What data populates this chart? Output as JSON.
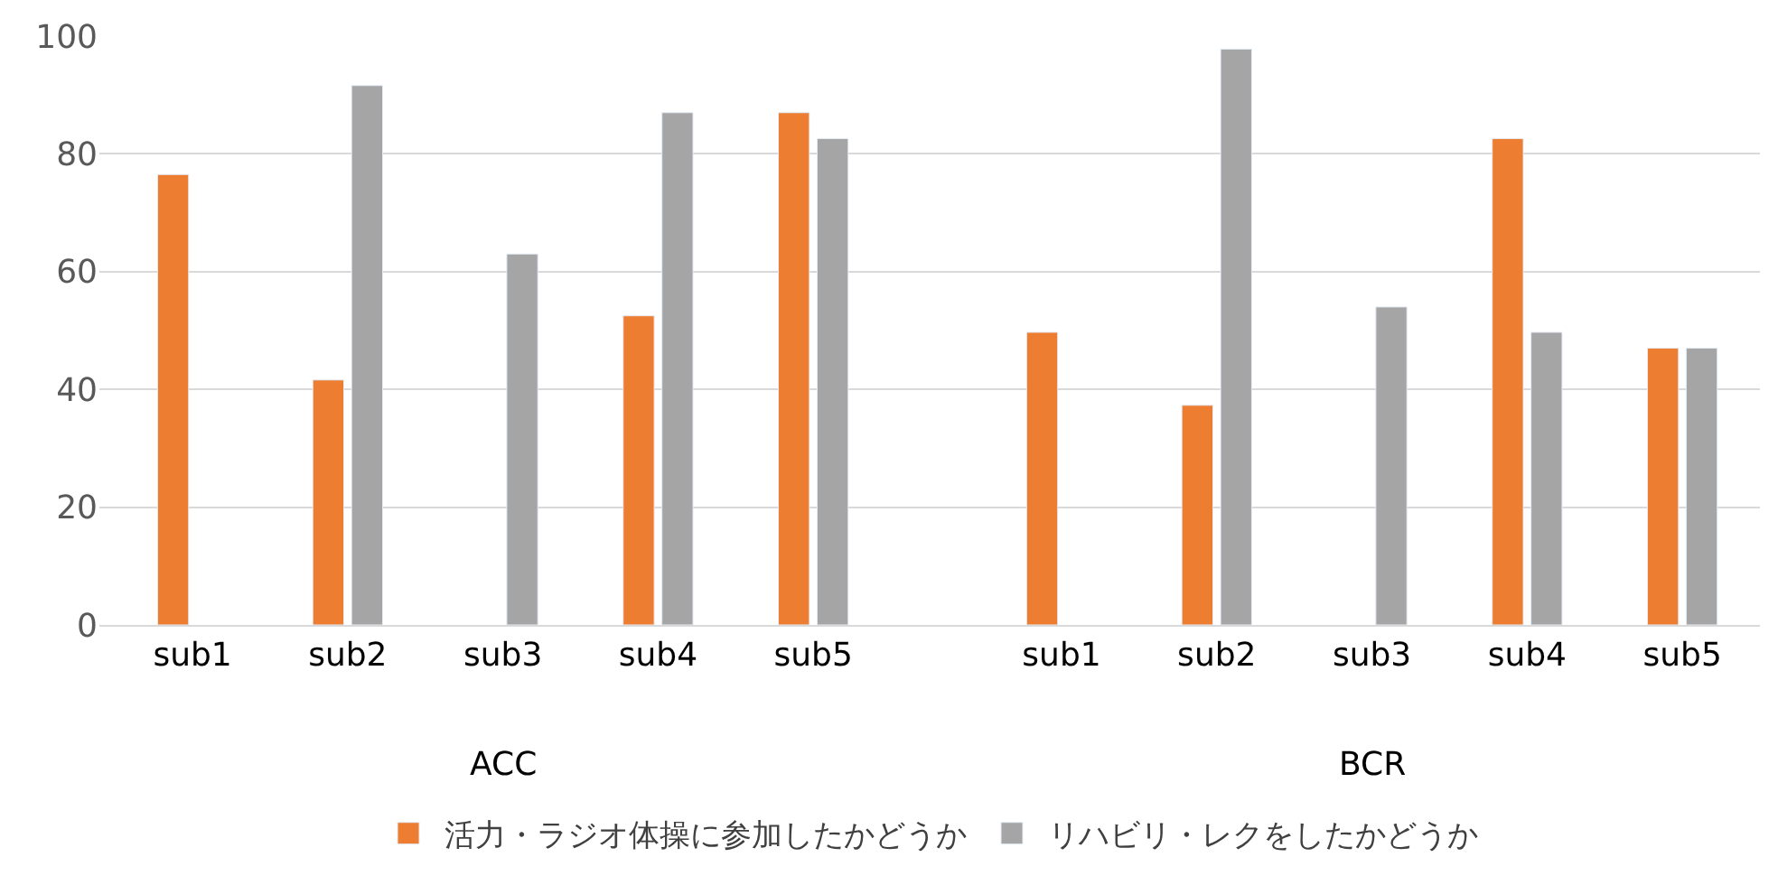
{
  "chart_data": {
    "type": "bar",
    "categories": [
      "sub1",
      "sub2",
      "sub3",
      "sub4",
      "sub5",
      "sub1",
      "sub2",
      "sub3",
      "sub4",
      "sub5"
    ],
    "series": [
      {
        "name": "活力・ラジオ体操に参加したかどうか",
        "color": "#ed7d31",
        "values": [
          76.5,
          41.6,
          null,
          52.5,
          87,
          49.7,
          37.3,
          null,
          82.6,
          47
        ]
      },
      {
        "name": "リハビリ・レクをしたかどうか",
        "color": "#a5a5a5",
        "values": [
          null,
          91.6,
          63,
          87,
          82.6,
          null,
          97.8,
          54,
          49.7,
          47
        ]
      }
    ],
    "annotations": [
      "ACC",
      "BCR"
    ],
    "ylim": [
      0,
      100
    ],
    "yticks": [
      0,
      20,
      40,
      60,
      80,
      100
    ],
    "grid": "y",
    "legend": "bottom"
  }
}
